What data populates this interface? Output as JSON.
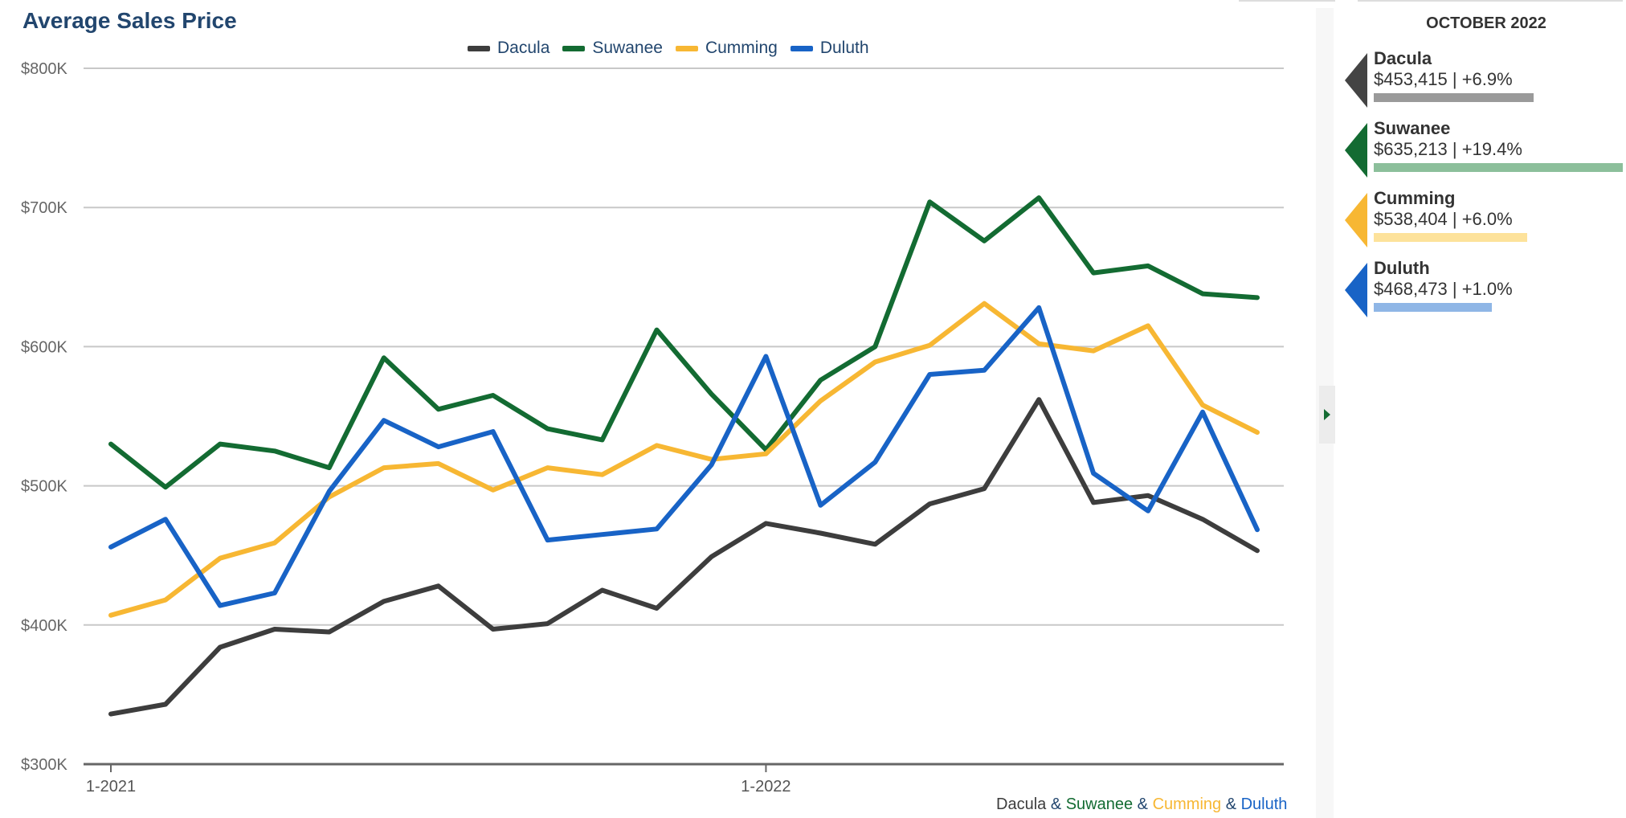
{
  "chart_data": {
    "type": "line",
    "title": "Average Sales Price",
    "x": [
      "1-2021",
      "2-2021",
      "3-2021",
      "4-2021",
      "5-2021",
      "6-2021",
      "7-2021",
      "8-2021",
      "9-2021",
      "10-2021",
      "11-2021",
      "12-2021",
      "1-2022",
      "2-2022",
      "3-2022",
      "4-2022",
      "5-2022",
      "6-2022",
      "7-2022",
      "8-2022",
      "9-2022",
      "10-2022"
    ],
    "x_tick_labels": [
      {
        "index": 0,
        "label": "1-2021"
      },
      {
        "index": 12,
        "label": "1-2022"
      }
    ],
    "y_ticks": [
      {
        "value": 300000,
        "label": "$300K"
      },
      {
        "value": 400000,
        "label": "$400K"
      },
      {
        "value": 500000,
        "label": "$500K"
      },
      {
        "value": 600000,
        "label": "$600K"
      },
      {
        "value": 700000,
        "label": "$700K"
      },
      {
        "value": 800000,
        "label": "$800K"
      }
    ],
    "ylim": [
      300000,
      800000
    ],
    "grid": true,
    "legend_position": "top-center",
    "series": [
      {
        "name": "Dacula",
        "color": "#3d3d3d",
        "values": [
          336000,
          343000,
          384000,
          397000,
          395000,
          417000,
          428000,
          397000,
          401000,
          425000,
          412000,
          449000,
          473000,
          466000,
          458000,
          487000,
          498000,
          562000,
          488000,
          493000,
          476000,
          453415
        ]
      },
      {
        "name": "Suwanee",
        "color": "#136b32",
        "values": [
          530000,
          499000,
          530000,
          525000,
          513000,
          592000,
          555000,
          565000,
          541000,
          533000,
          612000,
          566000,
          526000,
          576000,
          600000,
          704000,
          676000,
          707000,
          653000,
          658000,
          638000,
          635213
        ]
      },
      {
        "name": "Cumming",
        "color": "#f7b733",
        "values": [
          407000,
          418000,
          448000,
          459000,
          492000,
          513000,
          516000,
          497000,
          513000,
          508000,
          529000,
          519000,
          523000,
          561000,
          589000,
          601000,
          631000,
          602000,
          597000,
          615000,
          558000,
          538404
        ]
      },
      {
        "name": "Duluth",
        "color": "#1863c6",
        "values": [
          456000,
          476000,
          414000,
          423000,
          496000,
          547000,
          528000,
          539000,
          461000,
          465000,
          469000,
          515000,
          593000,
          486000,
          517000,
          580000,
          583000,
          628000,
          509000,
          482000,
          553000,
          468473
        ]
      }
    ]
  },
  "footer_caption": {
    "parts": [
      {
        "text": "Dacula",
        "color": "#3d3d3d"
      },
      {
        "text": " & ",
        "color": "#22466e"
      },
      {
        "text": "Suwanee",
        "color": "#136b32"
      },
      {
        "text": " & ",
        "color": "#22466e"
      },
      {
        "text": "Cumming",
        "color": "#f7b733"
      },
      {
        "text": " & ",
        "color": "#22466e"
      },
      {
        "text": "Duluth",
        "color": "#1863c6"
      }
    ]
  },
  "side_panel": {
    "period_label": "OCTOBER 2022",
    "cards": [
      {
        "name": "Dacula",
        "value_text": "$453,415 | +6.9%",
        "color": "#444444",
        "bar_color": "#9a9a9a",
        "change_pct": 6.9
      },
      {
        "name": "Suwanee",
        "value_text": "$635,213 | +19.4%",
        "color": "#136b32",
        "bar_color": "#8cbf9b",
        "change_pct": 19.4
      },
      {
        "name": "Cumming",
        "value_text": "$538,404 | +6.0%",
        "color": "#f7b733",
        "bar_color": "#fde29b",
        "change_pct": 6.0
      },
      {
        "name": "Duluth",
        "value_text": "$468,473 | +1.0%",
        "color": "#1863c6",
        "bar_color": "#8fb6e6",
        "change_pct": 1.0
      }
    ]
  }
}
